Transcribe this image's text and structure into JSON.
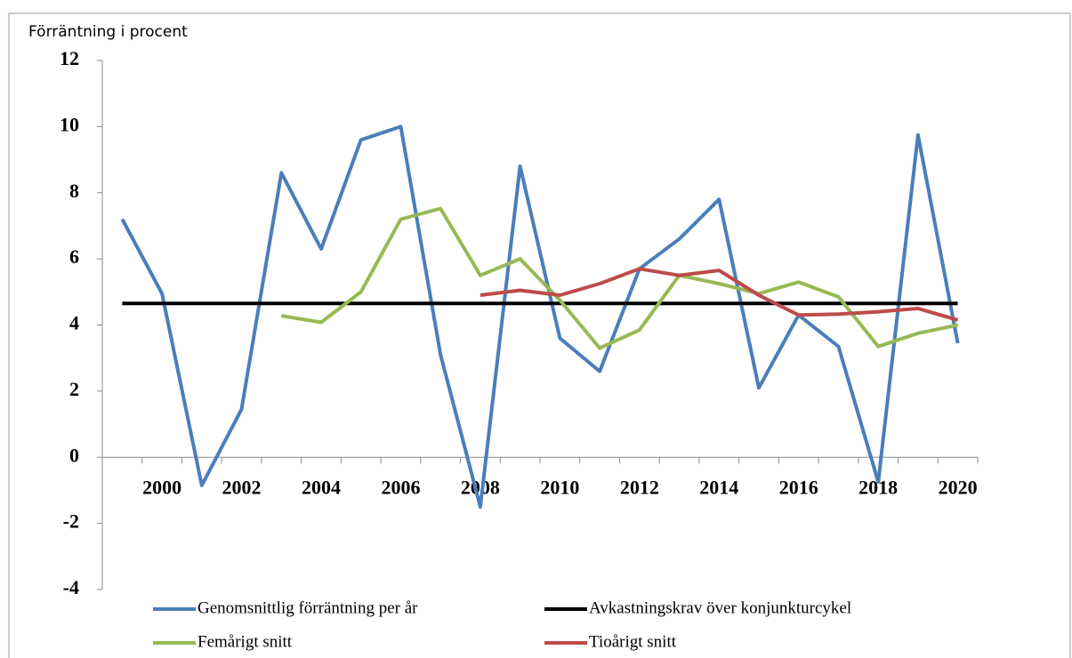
{
  "chart_data": {
    "type": "line",
    "y_axis_label": "Förräntning i procent",
    "categories": [
      null,
      "2000",
      null,
      "2002",
      null,
      "2004",
      null,
      "2006",
      null,
      "2008",
      null,
      "2010",
      null,
      "2012",
      null,
      "2014",
      null,
      "2016",
      null,
      "2018",
      null,
      "2020"
    ],
    "ylim": [
      -4,
      12
    ],
    "yticks": [
      -4,
      -2,
      0,
      2,
      4,
      6,
      8,
      10,
      12
    ],
    "legend": "bottom",
    "series": [
      {
        "name": "Genomsnittlig förräntning per år",
        "color": "#4a7ebb",
        "values": [
          7.2,
          4.95,
          -0.85,
          1.45,
          8.6,
          6.3,
          9.6,
          10.0,
          3.1,
          -1.5,
          8.8,
          3.6,
          2.6,
          5.7,
          6.6,
          7.8,
          2.1,
          4.3,
          3.35,
          -0.75,
          9.75,
          3.45
        ]
      },
      {
        "name": "Avkastningskrav över konjunkturcykel",
        "color": "#000000",
        "values": [
          4.65,
          4.65,
          4.65,
          4.65,
          4.65,
          4.65,
          4.65,
          4.65,
          4.65,
          4.65,
          4.65,
          4.65,
          4.65,
          4.65,
          4.65,
          4.65,
          4.65,
          4.65,
          4.65,
          4.65,
          4.65,
          4.65
        ]
      },
      {
        "name": "Femårigt snitt",
        "color": "#98b954",
        "values": [
          null,
          null,
          null,
          null,
          4.28,
          4.08,
          5.0,
          7.2,
          7.52,
          5.5,
          6.0,
          4.75,
          3.3,
          3.85,
          5.5,
          5.25,
          4.95,
          5.3,
          4.85,
          3.35,
          3.75,
          4.0
        ]
      },
      {
        "name": "Tioårigt snitt",
        "color": "#be4b48",
        "values": [
          null,
          null,
          null,
          null,
          null,
          null,
          null,
          null,
          null,
          4.9,
          5.05,
          4.9,
          5.25,
          5.7,
          5.5,
          5.65,
          4.9,
          4.3,
          4.33,
          4.4,
          4.5,
          4.15
        ]
      }
    ]
  }
}
